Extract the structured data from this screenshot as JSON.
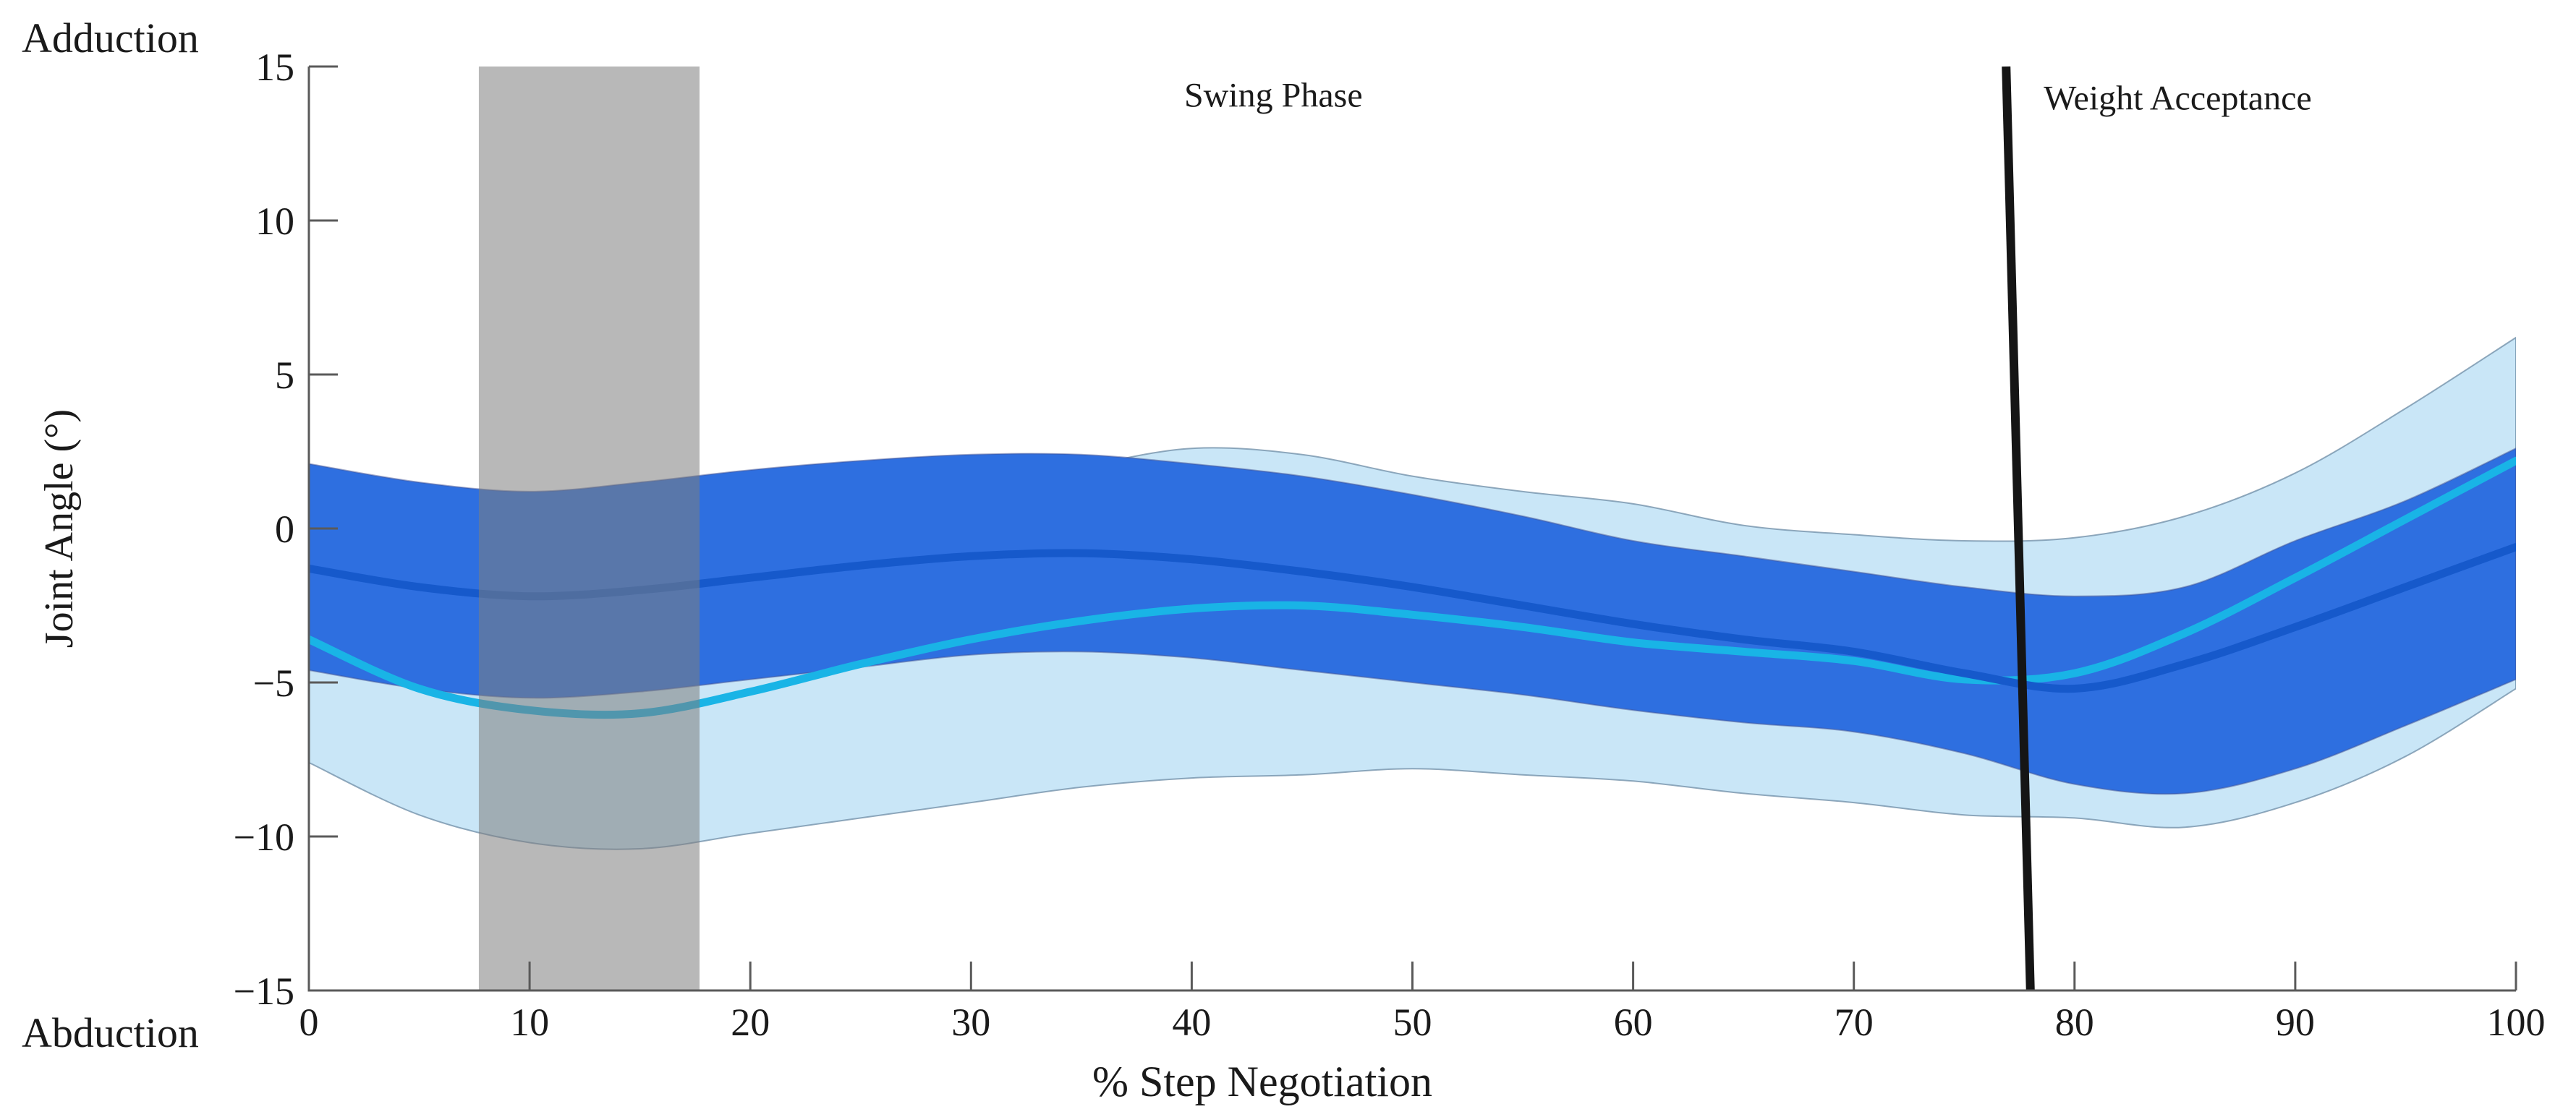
{
  "figure": {
    "background": "#ffffff"
  },
  "chart_data": {
    "type": "area",
    "title": "",
    "xlabel": "% Step Negotiation",
    "ylabel": "Joint Angle (°)",
    "ylabel_top": "Adduction",
    "ylabel_bottom": "Abduction",
    "xlim": [
      0,
      100
    ],
    "ylim": [
      -15,
      15
    ],
    "grid": false,
    "legend": "none",
    "x_ticks": [
      0,
      10,
      20,
      30,
      40,
      50,
      60,
      70,
      80,
      90,
      100
    ],
    "x_tick_labels": [
      "0",
      "10",
      "20",
      "30",
      "40",
      "50",
      "60",
      "70",
      "80",
      "90",
      "100"
    ],
    "y_ticks": [
      -15,
      -10,
      -5,
      0,
      5,
      10,
      15
    ],
    "y_tick_labels": [
      "−15",
      "−10",
      "−5",
      "0",
      "5",
      "10",
      "15"
    ],
    "x": [
      0,
      5,
      10,
      15,
      20,
      25,
      30,
      35,
      40,
      45,
      50,
      55,
      60,
      65,
      70,
      75,
      80,
      85,
      90,
      95,
      100
    ],
    "series": [
      {
        "name": "light-blue-group",
        "band_color": "#c9e6f7",
        "band_edge_color": "rgba(110,140,165,0.75)",
        "line_color": "#19b4e6",
        "line_width": 11,
        "mean": [
          -3.6,
          -5.2,
          -5.9,
          -6.0,
          -5.3,
          -4.4,
          -3.6,
          -3.0,
          -2.6,
          -2.5,
          -2.8,
          -3.2,
          -3.7,
          -4.0,
          -4.3,
          -4.9,
          -4.7,
          -3.4,
          -1.6,
          0.3,
          2.2
        ],
        "upper": [
          0.4,
          -0.3,
          -0.7,
          -0.8,
          -0.3,
          0.5,
          1.3,
          2.0,
          2.6,
          2.4,
          1.7,
          1.2,
          0.8,
          0.1,
          -0.2,
          -0.4,
          -0.3,
          0.4,
          1.8,
          3.9,
          6.2
        ],
        "lower": [
          -7.6,
          -9.3,
          -10.2,
          -10.4,
          -9.9,
          -9.4,
          -8.9,
          -8.4,
          -8.1,
          -8.0,
          -7.8,
          -8.0,
          -8.2,
          -8.6,
          -8.9,
          -9.3,
          -9.4,
          -9.7,
          -8.9,
          -7.4,
          -5.2
        ]
      },
      {
        "name": "dark-blue-group",
        "band_color": "#2e6fe0",
        "band_edge_color": "rgba(70,85,150,0.5)",
        "line_color": "#1659cb",
        "line_width": 11,
        "mean": [
          -1.3,
          -1.9,
          -2.2,
          -2.0,
          -1.6,
          -1.2,
          -0.9,
          -0.8,
          -1.0,
          -1.4,
          -1.9,
          -2.5,
          -3.1,
          -3.6,
          -4.0,
          -4.7,
          -5.2,
          -4.4,
          -3.2,
          -1.9,
          -0.6
        ],
        "upper": [
          2.1,
          1.5,
          1.2,
          1.5,
          1.9,
          2.2,
          2.4,
          2.4,
          2.1,
          1.7,
          1.1,
          0.4,
          -0.4,
          -0.9,
          -1.4,
          -1.9,
          -2.2,
          -1.9,
          -0.4,
          0.9,
          2.6
        ],
        "lower": [
          -4.6,
          -5.2,
          -5.5,
          -5.3,
          -4.9,
          -4.5,
          -4.1,
          -4.0,
          -4.2,
          -4.6,
          -5.0,
          -5.4,
          -5.9,
          -6.3,
          -6.6,
          -7.3,
          -8.3,
          -8.6,
          -7.8,
          -6.4,
          -4.9
        ]
      }
    ],
    "shaded_region": {
      "name": "gray-highlight-band",
      "x_start": 7.7,
      "x_end": 17.7,
      "color": "rgba(125,125,125,0.55)"
    },
    "event_line": {
      "name": "weight-acceptance-line",
      "x_top": 76.9,
      "x_bottom": 78.0,
      "color": "#151515",
      "width": 12
    },
    "annotations": [
      {
        "id": "swing-phase-label",
        "text": "Swing Phase",
        "x": 43.7,
        "y": 13.7,
        "anchor": "middle"
      },
      {
        "id": "weight-acceptance-label",
        "text": "Weight Acceptance",
        "x": 78.6,
        "y": 13.6,
        "anchor": "start"
      }
    ],
    "axis_color": "#5a5a5a",
    "text_color": "#1a1a1a"
  }
}
